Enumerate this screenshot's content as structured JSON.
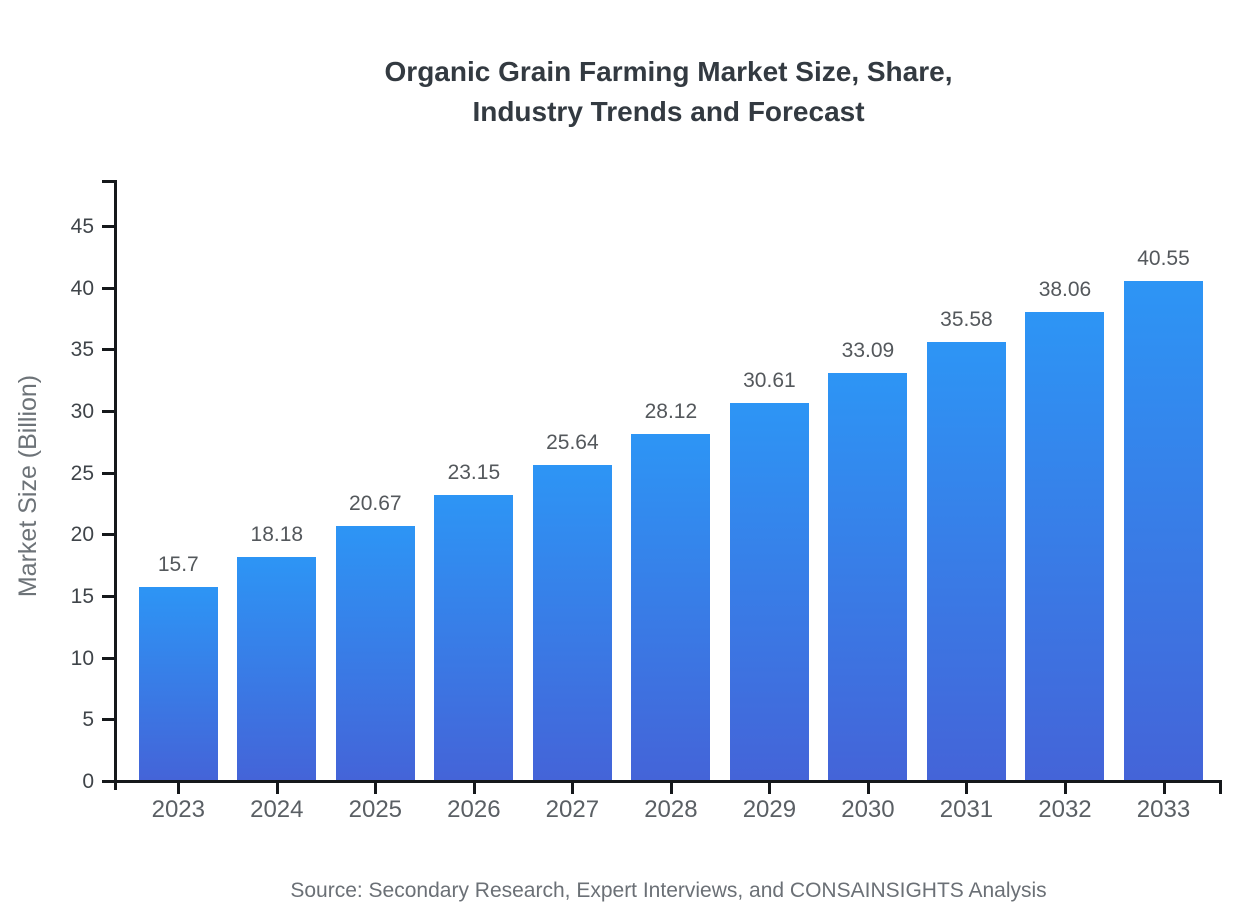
{
  "title": {
    "line1": "Organic Grain Farming Market Size, Share,",
    "line2": "Industry Trends and Forecast"
  },
  "source_note": "Source: Secondary Research, Expert Interviews, and CONSAINSIGHTS Analysis",
  "colors": {
    "bar_gradient_top": "#2d95f5",
    "bar_gradient_bottom": "#4464d8",
    "axis_line": "#15181b",
    "title_text": "#333a41",
    "value_label_text": "#54585c",
    "tick_label_text": "#3f4449",
    "x_label_text": "#5a5f64",
    "muted_text": "#6b7076"
  },
  "chart_data": {
    "type": "bar",
    "title": "Organic Grain Farming Market Size, Share, Industry Trends and Forecast",
    "categories": [
      "2023",
      "2024",
      "2025",
      "2026",
      "2027",
      "2028",
      "2029",
      "2030",
      "2031",
      "2032",
      "2033"
    ],
    "values": [
      15.7,
      18.18,
      20.67,
      23.15,
      25.64,
      28.12,
      30.61,
      33.09,
      35.58,
      38.06,
      40.55
    ],
    "value_labels": [
      "15.7",
      "18.18",
      "20.67",
      "23.15",
      "25.64",
      "28.12",
      "30.61",
      "33.09",
      "35.58",
      "38.06",
      "40.55"
    ],
    "xlabel": "",
    "ylabel": "Market Size (Billion)",
    "ylim": [
      0,
      48.7
    ],
    "yticks": [
      0,
      5,
      10,
      15,
      20,
      25,
      30,
      35,
      40,
      45
    ],
    "grid": false,
    "legend": "none",
    "bar_color_gradient": [
      "#2d95f5",
      "#4464d8"
    ],
    "value_labels_shown": true
  }
}
